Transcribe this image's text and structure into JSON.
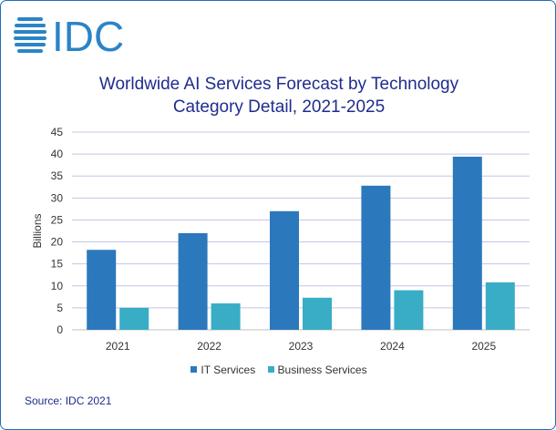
{
  "logo": {
    "text": "IDC",
    "icon": "globe-icon",
    "color": "#2b84c6"
  },
  "title": {
    "line1": "Worldwide AI Services Forecast by Technology",
    "line2": "Category Detail, 2021-2025"
  },
  "source": "Source: IDC 2021",
  "colors": {
    "border": "#1f6eb8",
    "title": "#1f2c8f",
    "grid": "#c5c5e8",
    "axis": "#bfbfbf"
  },
  "chart_data": {
    "type": "bar",
    "title": "Worldwide AI Services Forecast by Technology Category Detail, 2021-2025",
    "categories": [
      "2021",
      "2022",
      "2023",
      "2024",
      "2025"
    ],
    "series": [
      {
        "name": "IT Services",
        "color": "#2b78bd",
        "values": [
          18.2,
          22.0,
          27.0,
          32.8,
          39.4
        ]
      },
      {
        "name": "Business Services",
        "color": "#39acc6",
        "values": [
          5.0,
          6.0,
          7.3,
          9.0,
          10.8
        ]
      }
    ],
    "xlabel": "",
    "ylabel": "Billions",
    "ylim": [
      0,
      45
    ],
    "yticks": [
      0,
      5,
      10,
      15,
      20,
      25,
      30,
      35,
      40,
      45
    ],
    "grid": true,
    "legend": "bottom"
  }
}
